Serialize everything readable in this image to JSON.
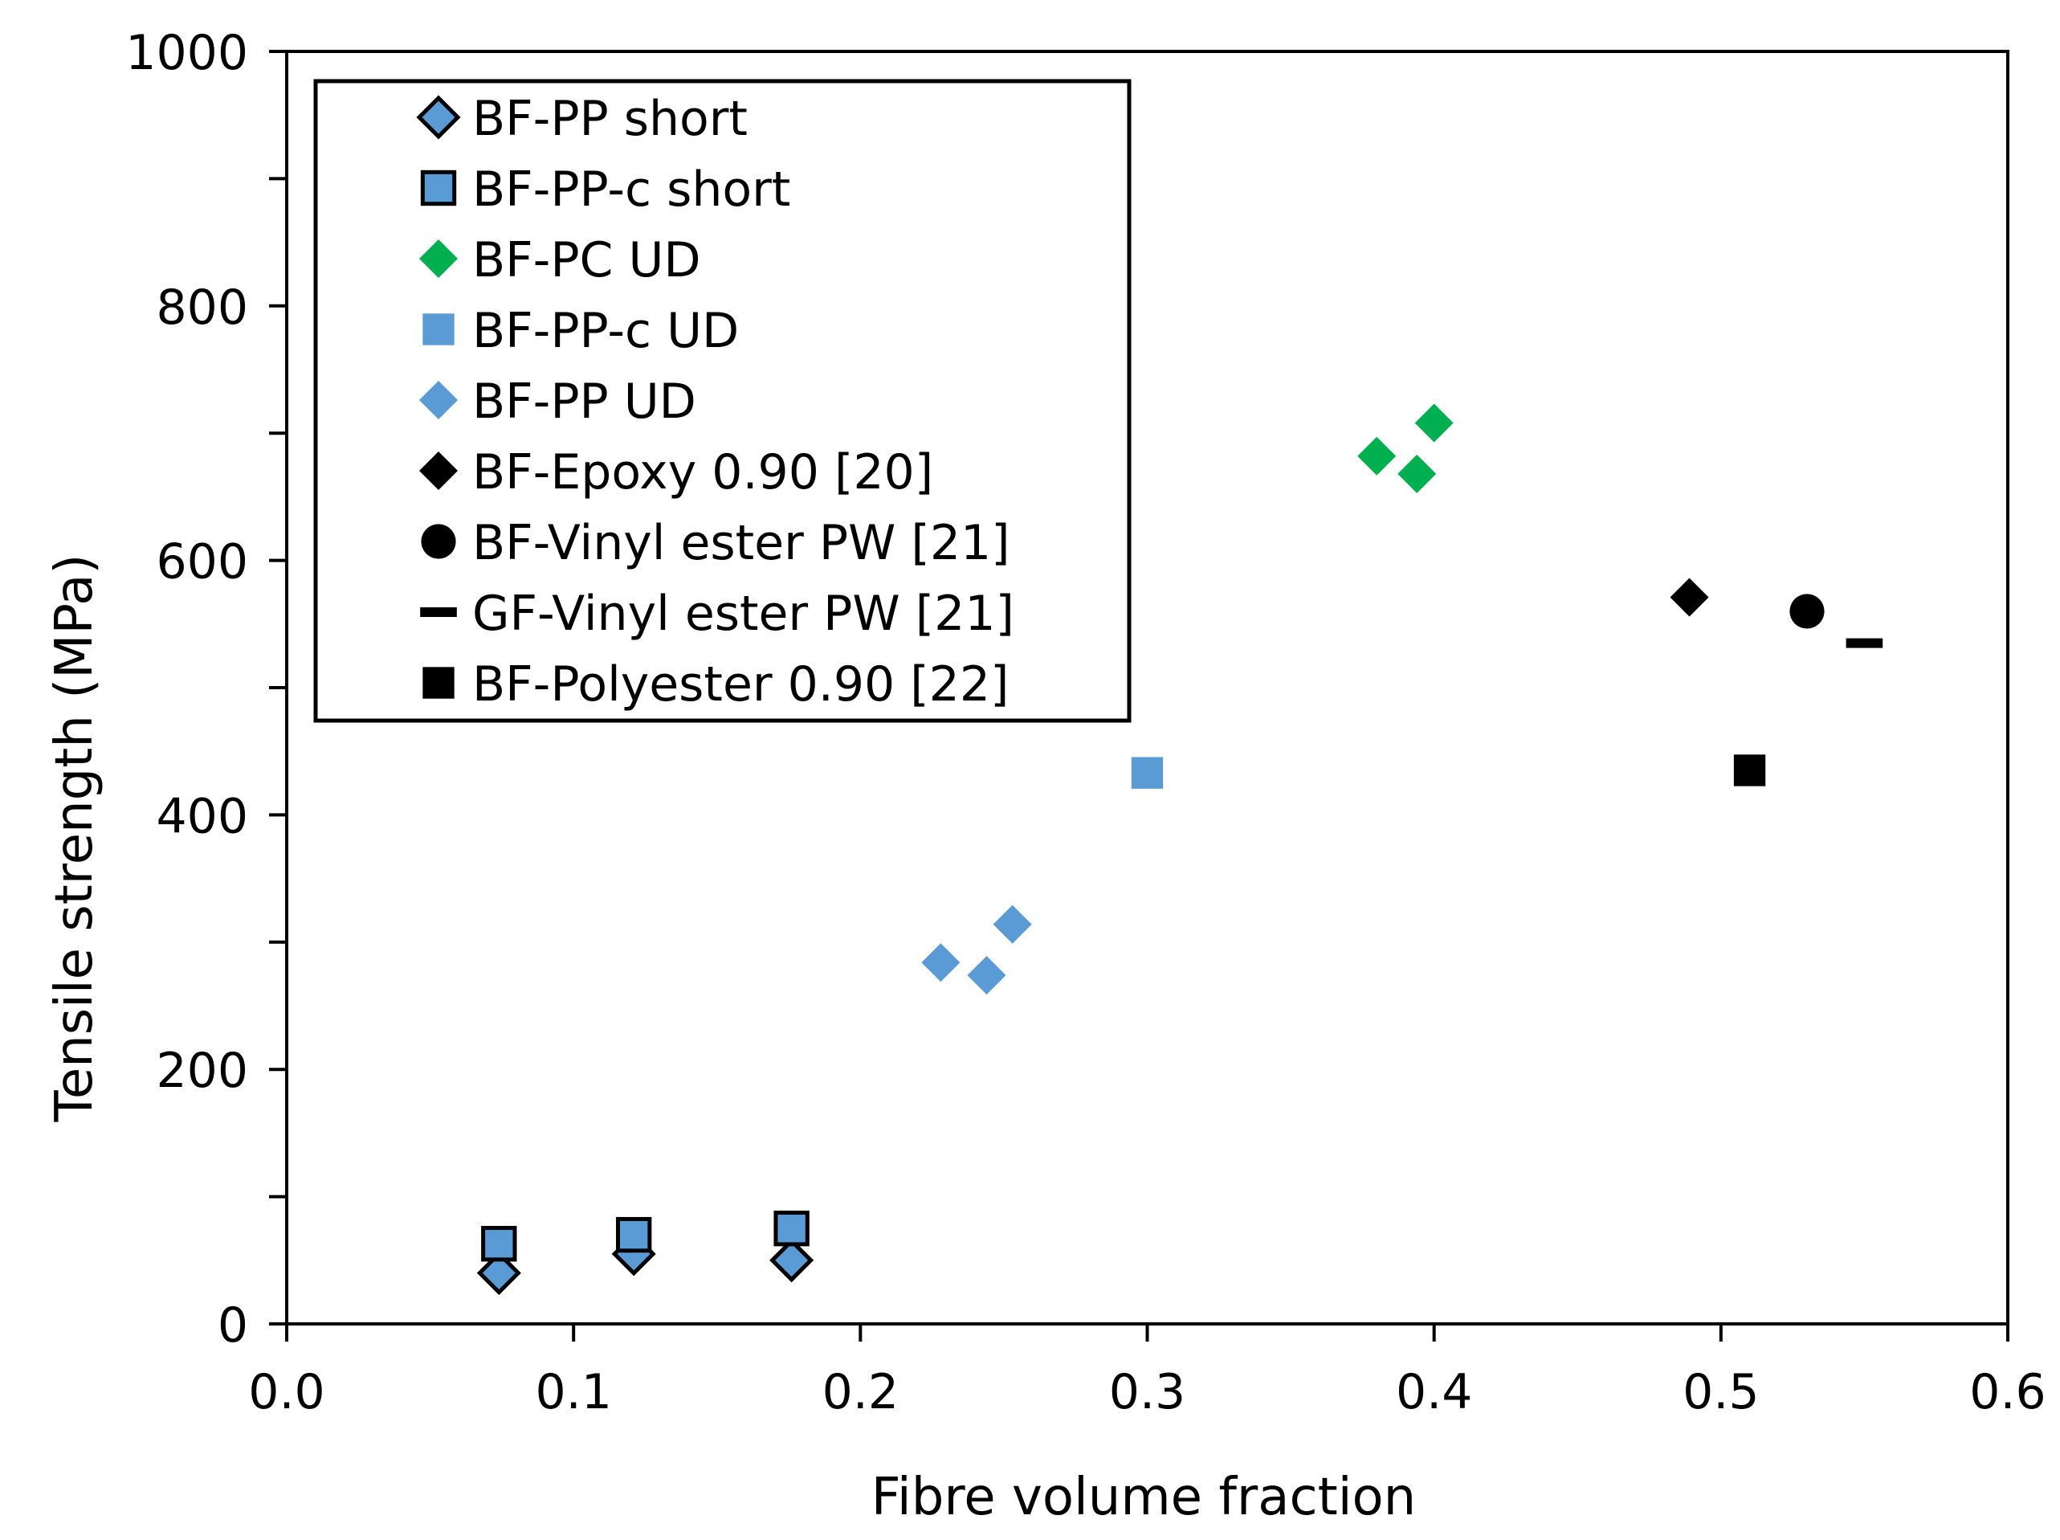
{
  "chart_data": {
    "type": "scatter",
    "title": "",
    "xlabel": "Fibre volume fraction",
    "ylabel": "Tensile strength (MPa)",
    "xlim": [
      0,
      0.6
    ],
    "ylim": [
      0,
      1000
    ],
    "xticks": [
      "0.0",
      "0.1",
      "0.2",
      "0.3",
      "0.4",
      "0.5",
      "0.6"
    ],
    "yticks": [
      "0",
      "200",
      "400",
      "600",
      "800",
      "1000"
    ],
    "grid": false,
    "legend_position": "top-left",
    "series": [
      {
        "name": "BF-PP short",
        "marker": "diamond-outline",
        "color": "#5b9bd5",
        "points": [
          [
            0.074,
            40
          ],
          [
            0.121,
            55
          ],
          [
            0.176,
            50
          ]
        ]
      },
      {
        "name": "BF-PP-c short",
        "marker": "square-outline",
        "color": "#5b9bd5",
        "points": [
          [
            0.074,
            63
          ],
          [
            0.121,
            70
          ],
          [
            0.176,
            75
          ]
        ]
      },
      {
        "name": "BF-PC UD",
        "marker": "diamond",
        "color": "#00b050",
        "points": [
          [
            0.38,
            682
          ],
          [
            0.394,
            668
          ],
          [
            0.4,
            708
          ]
        ]
      },
      {
        "name": "BF-PP-c UD",
        "marker": "square",
        "color": "#5b9bd5",
        "points": [
          [
            0.3,
            433
          ]
        ]
      },
      {
        "name": "BF-PP UD",
        "marker": "diamond",
        "color": "#5b9bd5",
        "points": [
          [
            0.228,
            284
          ],
          [
            0.244,
            274
          ],
          [
            0.253,
            314
          ]
        ]
      },
      {
        "name": "BF-Epoxy 0.90 [20]",
        "marker": "diamond",
        "color": "#000000",
        "points": [
          [
            0.489,
            571
          ]
        ]
      },
      {
        "name": "BF-Vinyl ester PW [21]",
        "marker": "circle",
        "color": "#000000",
        "points": [
          [
            0.53,
            560
          ]
        ]
      },
      {
        "name": "GF-Vinyl ester PW [21]",
        "marker": "dash",
        "color": "#000000",
        "points": [
          [
            0.55,
            535
          ]
        ]
      },
      {
        "name": "BF-Polyester 0.90 [22]",
        "marker": "square",
        "color": "#000000",
        "points": [
          [
            0.51,
            435
          ]
        ]
      }
    ]
  }
}
